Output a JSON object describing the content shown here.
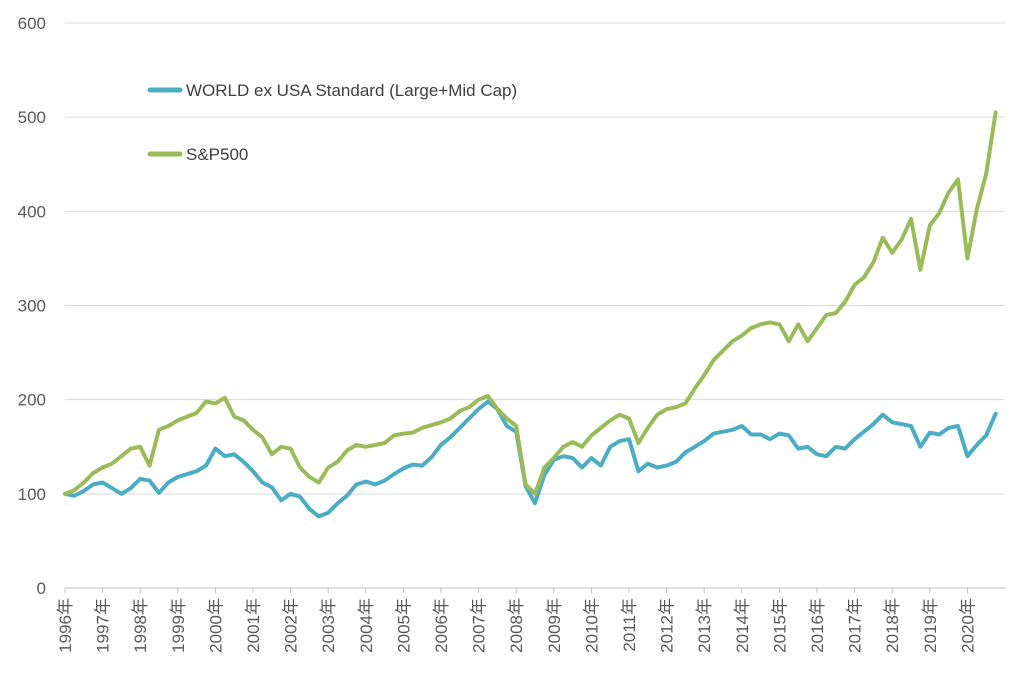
{
  "chart_data": {
    "type": "line",
    "title": "",
    "xlabel": "",
    "ylabel": "",
    "ylim": [
      0,
      600
    ],
    "yticks": [
      0,
      100,
      200,
      300,
      400,
      500,
      600
    ],
    "grid": "horizontal",
    "legend_position": "top-left",
    "categories": [
      "1996年",
      "1997年",
      "1998年",
      "1999年",
      "2000年",
      "2001年",
      "2002年",
      "2003年",
      "2004年",
      "2005年",
      "2006年",
      "2007年",
      "2008年",
      "2009年",
      "2010年",
      "2011年",
      "2012年",
      "2013年",
      "2014年",
      "2015年",
      "2016年",
      "2017年",
      "2018年",
      "2019年",
      "2020年"
    ],
    "series": [
      {
        "name": "WORLD ex USA Standard (Large+Mid Cap)",
        "color": "#4BACC6",
        "x": [
          1996.0,
          1996.25,
          1996.5,
          1996.75,
          1997.0,
          1997.25,
          1997.5,
          1997.75,
          1998.0,
          1998.25,
          1998.5,
          1998.75,
          1999.0,
          1999.25,
          1999.5,
          1999.75,
          2000.0,
          2000.25,
          2000.5,
          2000.75,
          2001.0,
          2001.25,
          2001.5,
          2001.75,
          2002.0,
          2002.25,
          2002.5,
          2002.75,
          2003.0,
          2003.25,
          2003.5,
          2003.75,
          2004.0,
          2004.25,
          2004.5,
          2004.75,
          2005.0,
          2005.25,
          2005.5,
          2005.75,
          2006.0,
          2006.25,
          2006.5,
          2006.75,
          2007.0,
          2007.25,
          2007.5,
          2007.75,
          2008.0,
          2008.25,
          2008.5,
          2008.75,
          2009.0,
          2009.25,
          2009.5,
          2009.75,
          2010.0,
          2010.25,
          2010.5,
          2010.75,
          2011.0,
          2011.25,
          2011.5,
          2011.75,
          2012.0,
          2012.25,
          2012.5,
          2012.75,
          2013.0,
          2013.25,
          2013.5,
          2013.75,
          2014.0,
          2014.25,
          2014.5,
          2014.75,
          2015.0,
          2015.25,
          2015.5,
          2015.75,
          2016.0,
          2016.25,
          2016.5,
          2016.75,
          2017.0,
          2017.25,
          2017.5,
          2017.75,
          2018.0,
          2018.25,
          2018.5,
          2018.75,
          2019.0,
          2019.25,
          2019.5,
          2019.75,
          2020.0,
          2020.25,
          2020.5,
          2020.75
        ],
        "values": [
          100,
          98,
          103,
          110,
          112,
          106,
          100,
          106,
          116,
          114,
          101,
          112,
          118,
          121,
          124,
          130,
          148,
          140,
          142,
          134,
          124,
          112,
          107,
          93,
          100,
          97,
          84,
          76,
          80,
          90,
          98,
          110,
          113,
          110,
          114,
          121,
          127,
          131,
          130,
          139,
          152,
          160,
          170,
          180,
          190,
          198,
          190,
          172,
          166,
          108,
          90,
          120,
          136,
          140,
          138,
          128,
          138,
          130,
          150,
          156,
          158,
          124,
          132,
          128,
          130,
          134,
          144,
          150,
          156,
          164,
          166,
          168,
          172,
          163,
          163,
          158,
          164,
          162,
          148,
          150,
          142,
          140,
          150,
          148,
          158,
          166,
          174,
          184,
          176,
          174,
          172,
          150,
          165,
          163,
          170,
          172,
          140,
          152,
          162,
          185
        ]
      },
      {
        "name": "S&P500",
        "color": "#9BBB59",
        "x": [
          1996.0,
          1996.25,
          1996.5,
          1996.75,
          1997.0,
          1997.25,
          1997.5,
          1997.75,
          1998.0,
          1998.25,
          1998.5,
          1998.75,
          1999.0,
          1999.25,
          1999.5,
          1999.75,
          2000.0,
          2000.25,
          2000.5,
          2000.75,
          2001.0,
          2001.25,
          2001.5,
          2001.75,
          2002.0,
          2002.25,
          2002.5,
          2002.75,
          2003.0,
          2003.25,
          2003.5,
          2003.75,
          2004.0,
          2004.25,
          2004.5,
          2004.75,
          2005.0,
          2005.25,
          2005.5,
          2005.75,
          2006.0,
          2006.25,
          2006.5,
          2006.75,
          2007.0,
          2007.25,
          2007.5,
          2007.75,
          2008.0,
          2008.25,
          2008.5,
          2008.75,
          2009.0,
          2009.25,
          2009.5,
          2009.75,
          2010.0,
          2010.25,
          2010.5,
          2010.75,
          2011.0,
          2011.25,
          2011.5,
          2011.75,
          2012.0,
          2012.25,
          2012.5,
          2012.75,
          2013.0,
          2013.25,
          2013.5,
          2013.75,
          2014.0,
          2014.25,
          2014.5,
          2014.75,
          2015.0,
          2015.25,
          2015.5,
          2015.75,
          2016.0,
          2016.25,
          2016.5,
          2016.75,
          2017.0,
          2017.25,
          2017.5,
          2017.75,
          2018.0,
          2018.25,
          2018.5,
          2018.75,
          2019.0,
          2019.25,
          2019.5,
          2019.75,
          2020.0,
          2020.25,
          2020.5,
          2020.75
        ],
        "values": [
          100,
          104,
          112,
          122,
          128,
          132,
          140,
          148,
          150,
          130,
          168,
          172,
          178,
          182,
          186,
          198,
          196,
          202,
          182,
          178,
          168,
          160,
          142,
          150,
          148,
          128,
          118,
          112,
          128,
          134,
          146,
          152,
          150,
          152,
          154,
          162,
          164,
          165,
          170,
          173,
          176,
          180,
          188,
          192,
          200,
          204,
          190,
          180,
          172,
          110,
          100,
          128,
          138,
          150,
          155,
          150,
          162,
          170,
          178,
          184,
          180,
          154,
          170,
          184,
          190,
          192,
          196,
          212,
          226,
          242,
          252,
          262,
          268,
          276,
          280,
          282,
          280,
          262,
          280,
          262,
          276,
          290,
          292,
          304,
          322,
          330,
          346,
          372,
          356,
          370,
          392,
          338,
          385,
          398,
          420,
          434,
          350,
          402,
          440,
          505
        ]
      }
    ]
  }
}
